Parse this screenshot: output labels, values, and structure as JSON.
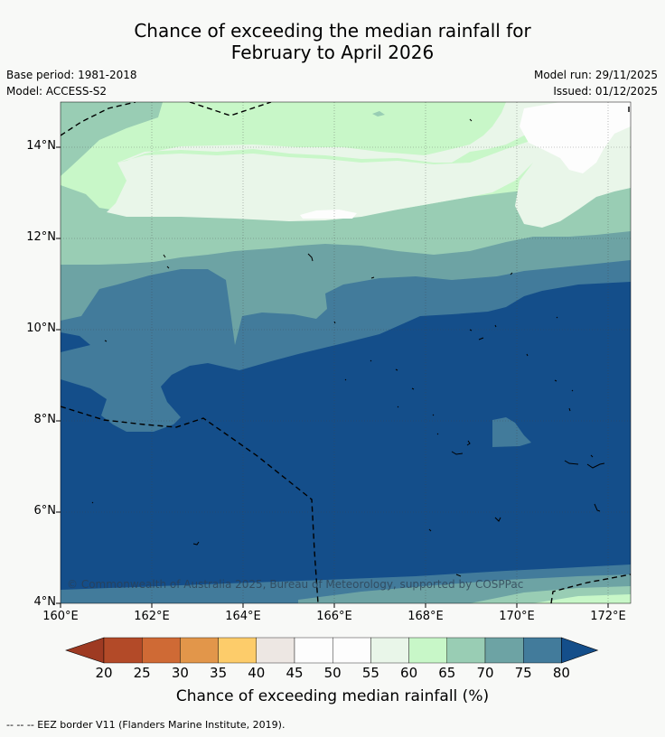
{
  "title_line1": "Chance of exceeding the median rainfall for",
  "title_line2": "February to April 2026",
  "base_period": "Base period: 1981-2018",
  "model": "Model: ACCESS-S2",
  "model_run": "Model run: 29/11/2025",
  "issued": "Issued: 01/12/2025",
  "y_labels": [
    "14°N",
    "12°N",
    "10°N",
    "8°N",
    "6°N",
    "4°N"
  ],
  "x_labels": [
    "160°E",
    "162°E",
    "164°E",
    "166°E",
    "168°E",
    "170°E",
    "172°E"
  ],
  "copyright": "© Commonwealth of Australia 2025, Bureau of Meteorology, supported by COSPPac",
  "colorbar": {
    "labels": [
      "20",
      "25",
      "30",
      "35",
      "40",
      "45",
      "50",
      "55",
      "60",
      "65",
      "70",
      "75",
      "80"
    ],
    "colors": [
      "#9e3a22",
      "#b34a28",
      "#cf6a35",
      "#e2964a",
      "#fdcc6a",
      "#ede7e3",
      "#fdfdfd",
      "#fdfdfd",
      "#e9f6e9",
      "#c8f7c8",
      "#99cdb4",
      "#6da3a4",
      "#427b9b",
      "#144e8a"
    ],
    "title": "Chance of exceeding median rainfall (%)"
  },
  "footer": "--  --  -- EEZ border V11 (Flanders Marine Institute, 2019)."
}
